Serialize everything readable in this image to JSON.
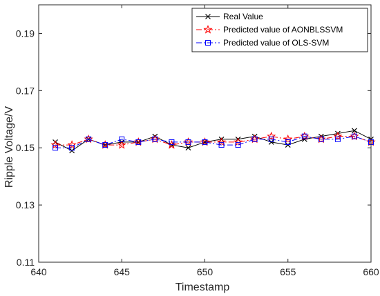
{
  "chart_data": {
    "type": "line",
    "xlabel": "Timestamp",
    "ylabel": "Ripple Voltage/V",
    "xlim": [
      640,
      660
    ],
    "ylim": [
      0.11,
      0.2
    ],
    "x_ticks": [
      640,
      645,
      650,
      655,
      660
    ],
    "x_tick_labels": [
      "640",
      "645",
      "650",
      "655",
      "660"
    ],
    "y_ticks": [
      0.11,
      0.13,
      0.15,
      0.17,
      0.19
    ],
    "y_tick_labels": [
      "0.11",
      "0.13",
      "0.15",
      "0.17",
      "0.19"
    ],
    "grid": false,
    "legend_position": "top-right",
    "x": [
      641,
      642,
      643,
      644,
      645,
      646,
      647,
      648,
      649,
      650,
      651,
      652,
      653,
      654,
      655,
      656,
      657,
      658,
      659,
      660
    ],
    "series": [
      {
        "name": "Real  Value",
        "color": "#000000",
        "line_style": "solid",
        "marker": "x",
        "values": [
          0.152,
          0.149,
          0.153,
          0.151,
          0.152,
          0.152,
          0.154,
          0.151,
          0.15,
          0.152,
          0.153,
          0.153,
          0.154,
          0.152,
          0.151,
          0.153,
          0.154,
          0.155,
          0.156,
          0.153
        ]
      },
      {
        "name": "Predicted value of AONBLSSVM",
        "color": "#ff0000",
        "line_style": "dashdot",
        "marker": "star",
        "values": [
          0.151,
          0.151,
          0.153,
          0.151,
          0.151,
          0.152,
          0.153,
          0.151,
          0.152,
          0.152,
          0.152,
          0.152,
          0.153,
          0.154,
          0.153,
          0.154,
          0.153,
          0.154,
          0.154,
          0.152
        ]
      },
      {
        "name": "Predicted value of OLS-SVM",
        "color": "#0000ff",
        "line_style": "dashdot",
        "marker": "square",
        "values": [
          0.15,
          0.15,
          0.153,
          0.151,
          0.153,
          0.152,
          0.153,
          0.152,
          0.152,
          0.152,
          0.151,
          0.151,
          0.153,
          0.153,
          0.152,
          0.154,
          0.153,
          0.153,
          0.154,
          0.152
        ]
      }
    ]
  }
}
